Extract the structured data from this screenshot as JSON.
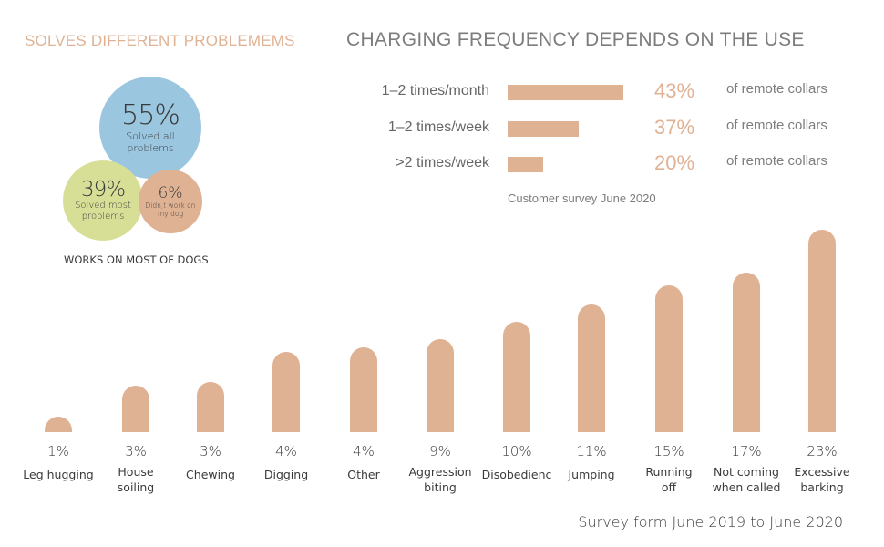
{
  "titles": {
    "left": "SOLVES DIFFERENT PROBLEMEMS",
    "right": "CHARGING FREQUENCY DEPENDS ON THE USE"
  },
  "colors": {
    "accent": "#dfb294",
    "blue": "#9bc6e0",
    "green": "#d7df97",
    "text_gray": "#7d7d7d",
    "text_dark": "#3a3a3a"
  },
  "effectiveness": {
    "caption": "WORKS ON MOST OF DOGS",
    "circles": [
      {
        "pct": "55%",
        "label_lines": [
          "Solved all",
          "problems"
        ],
        "color": "#9bc6e0"
      },
      {
        "pct": "39%",
        "label_lines": [
          "Solved most",
          "problems"
        ],
        "color": "#d7df97"
      },
      {
        "pct": "6%",
        "label_lines": [
          "Didn,t work on",
          "my dog"
        ],
        "color": "#dfb294"
      }
    ]
  },
  "charging": {
    "rows": [
      {
        "label": "1–2 times/month",
        "value": 43,
        "pct": "43%",
        "suffix": "of remote collars"
      },
      {
        "label": "1–2 times/week",
        "value": 37,
        "pct": "37%",
        "suffix": "of remote collars"
      },
      {
        "label": ">2 times/week",
        "value": 20,
        "pct": "20%",
        "suffix": "of remote collars"
      }
    ],
    "note": "Customer survey June 2020"
  },
  "chart_data": [
    {
      "type": "bar",
      "title": "CHARGING FREQUENCY DEPENDS ON THE USE",
      "orientation": "horizontal",
      "categories": [
        "1–2 times/month",
        "1–2 times/week",
        ">2 times/week"
      ],
      "values": [
        43,
        37,
        20
      ],
      "unit": "% of remote collars",
      "note": "Customer survey June 2020"
    },
    {
      "type": "bar",
      "title": "SOLVES DIFFERENT PROBLEMEMS",
      "orientation": "vertical",
      "categories": [
        "Leg hugging",
        "House soiling",
        "Chewing",
        "Digging",
        "Other",
        "Aggression biting",
        "Disobedienc",
        "Jumping",
        "Running off",
        "Not coming when called",
        "Excessive barking"
      ],
      "label_lines": [
        [
          "Leg hugging"
        ],
        [
          "House",
          "soiling"
        ],
        [
          "Chewing"
        ],
        [
          "Digging"
        ],
        [
          "Other"
        ],
        [
          "Aggression",
          "biting"
        ],
        [
          "Disobedienc"
        ],
        [
          "Jumping"
        ],
        [
          "Running",
          "off"
        ],
        [
          "Not coming",
          "when called"
        ],
        [
          "Excessive",
          "barking"
        ]
      ],
      "values": [
        1,
        3,
        3,
        4,
        4,
        9,
        10,
        11,
        15,
        17,
        23
      ],
      "value_labels": [
        "1%",
        "3%",
        "3%",
        "4%",
        "4%",
        "9%",
        "10%",
        "11%",
        "15%",
        "17%",
        "23%"
      ],
      "source": "Survey form June 2019 to June 2020",
      "grid": false,
      "legend": "none"
    }
  ]
}
